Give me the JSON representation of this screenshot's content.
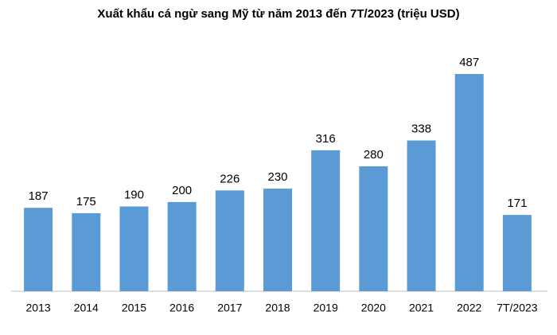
{
  "chart_data": {
    "type": "bar",
    "title": "Xuất khẩu cá ngừ sang Mỹ từ năm 2013 đến 7T/2023 (triệu USD)",
    "categories": [
      "2013",
      "2014",
      "2015",
      "2016",
      "2017",
      "2018",
      "2019",
      "2020",
      "2021",
      "2022",
      "7T/2023"
    ],
    "values": [
      187,
      175,
      190,
      200,
      226,
      230,
      316,
      280,
      338,
      487,
      171
    ],
    "color": "#5b9bd5"
  }
}
